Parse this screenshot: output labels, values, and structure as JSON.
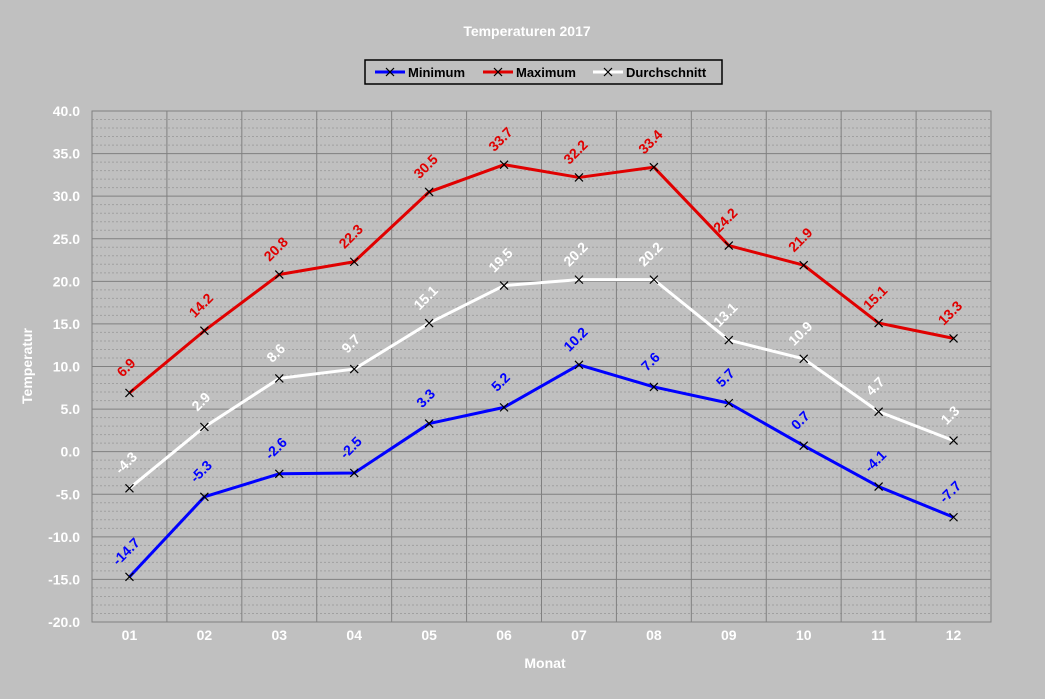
{
  "chart_data": {
    "type": "line",
    "title": "Temperaturen 2017",
    "xlabel": "Monat",
    "ylabel": "Temperatur",
    "categories": [
      "01",
      "02",
      "03",
      "04",
      "05",
      "06",
      "07",
      "08",
      "09",
      "10",
      "11",
      "12"
    ],
    "ylim": [
      -20,
      40
    ],
    "y_major_step": 5,
    "y_minor_step": 1,
    "y_tick_labels": [
      "40.0",
      "35.0",
      "30.0",
      "25.0",
      "20.0",
      "15.0",
      "10.0",
      "5.0",
      "0.0",
      "-5.0",
      "-10.0",
      "-15.0",
      "-20.0"
    ],
    "grid": true,
    "legend_position": "top-center",
    "series": [
      {
        "name": "Minimum",
        "color": "#0000ff",
        "values": [
          -14.7,
          -5.3,
          -2.6,
          -2.5,
          3.3,
          5.2,
          10.2,
          7.6,
          5.7,
          0.7,
          -4.1,
          -7.7
        ],
        "labels": [
          "-14.7",
          "-5.3",
          "-2.6",
          "-2.5",
          "3.3",
          "5.2",
          "10.2",
          "7.6",
          "5.7",
          "0.7",
          "-4.1",
          "-7.7"
        ]
      },
      {
        "name": "Maximum",
        "color": "#e00000",
        "values": [
          6.9,
          14.2,
          20.8,
          22.3,
          30.5,
          33.7,
          32.2,
          33.4,
          24.2,
          21.9,
          15.1,
          13.3
        ],
        "labels": [
          "6.9",
          "14.2",
          "20.8",
          "22.3",
          "30.5",
          "33.7",
          "32.2",
          "33.4",
          "24.2",
          "21.9",
          "15.1",
          "13.3"
        ]
      },
      {
        "name": "Durchschnitt",
        "color": "#ffffff",
        "values": [
          -4.3,
          2.9,
          8.6,
          9.7,
          15.1,
          19.5,
          20.2,
          20.2,
          13.1,
          10.9,
          4.7,
          1.3
        ],
        "labels": [
          "-4.3",
          "2.9",
          "8.6",
          "9.7",
          "15.1",
          "19.5",
          "20.2",
          "20.2",
          "13.1",
          "10.9",
          "4.7",
          "1.3"
        ]
      }
    ]
  }
}
